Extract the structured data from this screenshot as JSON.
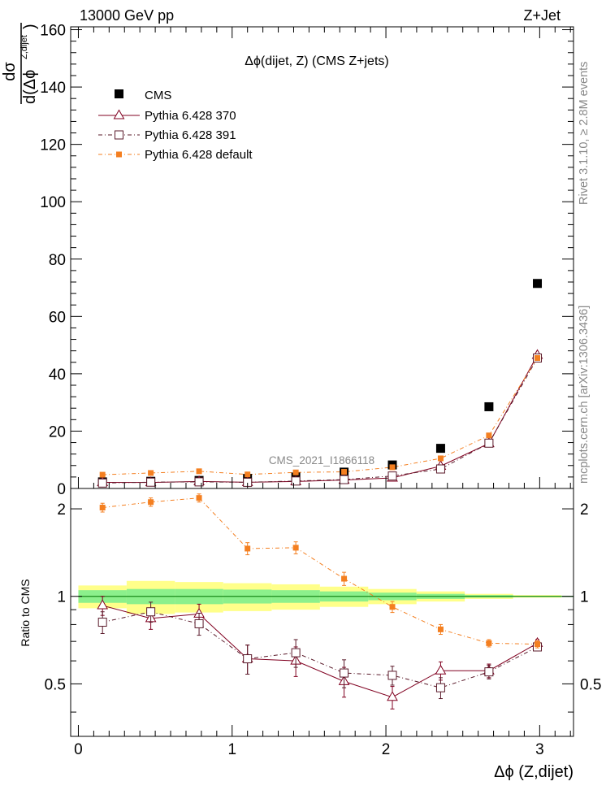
{
  "header": {
    "left": "13000 GeV pp",
    "right": "Z+Jet"
  },
  "side_labels": {
    "rivet": "Rivet 3.1.10, ≥ 2.8M events",
    "source": "mcplots.cern.ch [arXiv:1306.3436]"
  },
  "chart_data": {
    "type": "scatter",
    "title": "Δϕ(dijet, Z) (CMS Z+jets)",
    "analysis_id": "CMS_2021_I1866118",
    "xlabel": "Δϕ (Z,dijet)",
    "ylabel_num": "dσ",
    "ylabel_den": "d(Δϕ",
    "ylabel_sub": "Z,dijet",
    "ylabel_close": ")",
    "ratio_ylabel": "Ratio to CMS",
    "xlim": [
      -0.05,
      3.22
    ],
    "ylim": [
      0,
      161
    ],
    "ratio_ylim": [
      0.33,
      2.35
    ],
    "x_ticks": [
      "0",
      "1",
      "2",
      "3"
    ],
    "y_ticks": [
      "0",
      "20",
      "40",
      "60",
      "80",
      "100",
      "120",
      "140",
      "160"
    ],
    "ratio_ticks": [
      "0.5",
      "1",
      "2"
    ],
    "bin_edges": [
      0,
      0.314,
      0.628,
      0.942,
      1.257,
      1.571,
      1.885,
      2.199,
      2.513,
      2.827,
      3.142
    ],
    "x": [
      0.157,
      0.471,
      0.785,
      1.1,
      1.414,
      1.728,
      2.042,
      2.356,
      2.67,
      2.985
    ],
    "data": {
      "name": "CMS",
      "values": [
        2.3,
        2.5,
        2.8,
        3.5,
        4.0,
        5.7,
        8.2,
        14.0,
        28.5,
        71.5
      ],
      "band_inner": [
        0.05,
        0.06,
        0.06,
        0.055,
        0.05,
        0.04,
        0.03,
        0.02,
        0.01,
        0.005
      ],
      "band_outer": [
        0.09,
        0.13,
        0.12,
        0.11,
        0.1,
        0.08,
        0.06,
        0.04,
        0.02,
        0.01
      ]
    },
    "series": [
      {
        "name": "Pythia 6.428 370",
        "color": "#800020",
        "marker": "triangle",
        "values": [
          2.12,
          2.1,
          2.45,
          2.15,
          2.45,
          2.95,
          3.7,
          7.8,
          15.7,
          46.5
        ],
        "ratio": [
          0.93,
          0.84,
          0.87,
          0.61,
          0.6,
          0.51,
          0.45,
          0.555,
          0.555,
          0.69
        ],
        "ratio_err": [
          0.07,
          0.07,
          0.07,
          0.07,
          0.07,
          0.06,
          0.04,
          0.04,
          0.03,
          0.02
        ]
      },
      {
        "name": "Pythia 6.428 391",
        "color": "#5a1a2a",
        "marker": "square-open",
        "values": [
          1.9,
          2.2,
          2.3,
          2.15,
          2.6,
          3.1,
          4.35,
          6.8,
          15.8,
          45.5
        ],
        "ratio": [
          0.815,
          0.885,
          0.805,
          0.61,
          0.64,
          0.545,
          0.535,
          0.485,
          0.55,
          0.67
        ],
        "ratio_err": [
          0.07,
          0.07,
          0.07,
          0.07,
          0.07,
          0.06,
          0.04,
          0.04,
          0.03,
          0.02
        ]
      },
      {
        "name": "Pythia 6.428 default",
        "color": "#f47f20",
        "marker": "square-filled",
        "values": [
          4.8,
          5.4,
          6.0,
          4.9,
          5.6,
          5.8,
          7.4,
          10.5,
          18.5,
          45.5
        ],
        "ratio": [
          2.02,
          2.11,
          2.18,
          1.46,
          1.47,
          1.15,
          0.92,
          0.77,
          0.69,
          0.685
        ],
        "ratio_err": [
          0.07,
          0.07,
          0.07,
          0.07,
          0.07,
          0.06,
          0.04,
          0.03,
          0.02,
          0.02
        ]
      }
    ]
  }
}
